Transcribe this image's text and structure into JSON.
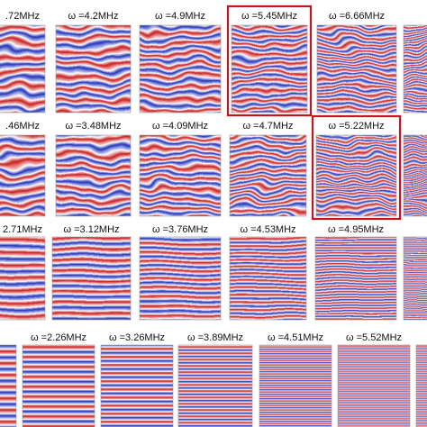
{
  "rows": [
    {
      "panels": [
        {
          "label": ".72MHz"
        },
        {
          "label": "ω =4.2MHz"
        },
        {
          "label": "ω =4.9MHz"
        },
        {
          "label": "ω =5.45MHz",
          "highlighted": true
        },
        {
          "label": "ω =6.66MHz"
        },
        {}
      ]
    },
    {
      "panels": [
        {
          "label": ".46MHz"
        },
        {
          "label": "ω =3.48MHz"
        },
        {
          "label": "ω =4.09MHz"
        },
        {
          "label": "ω =4.7MHz"
        },
        {
          "label": "ω =5.22MHz",
          "highlighted": true
        },
        {}
      ]
    },
    {
      "panels": [
        {
          "label": "2.71MHz"
        },
        {
          "label": "ω =3.12MHz"
        },
        {
          "label": "ω =3.76MHz"
        },
        {
          "label": "ω =4.53MHz"
        },
        {
          "label": "ω =4.95MHz"
        },
        {}
      ]
    },
    {
      "panels": [
        {},
        {
          "label": "ω =2.26MHz"
        },
        {
          "label": "ω =3.26MHz"
        },
        {
          "label": "ω =3.89MHz"
        },
        {
          "label": "ω =4.51MHz"
        },
        {
          "label": "ω =5.52MHz"
        },
        {}
      ]
    }
  ]
}
